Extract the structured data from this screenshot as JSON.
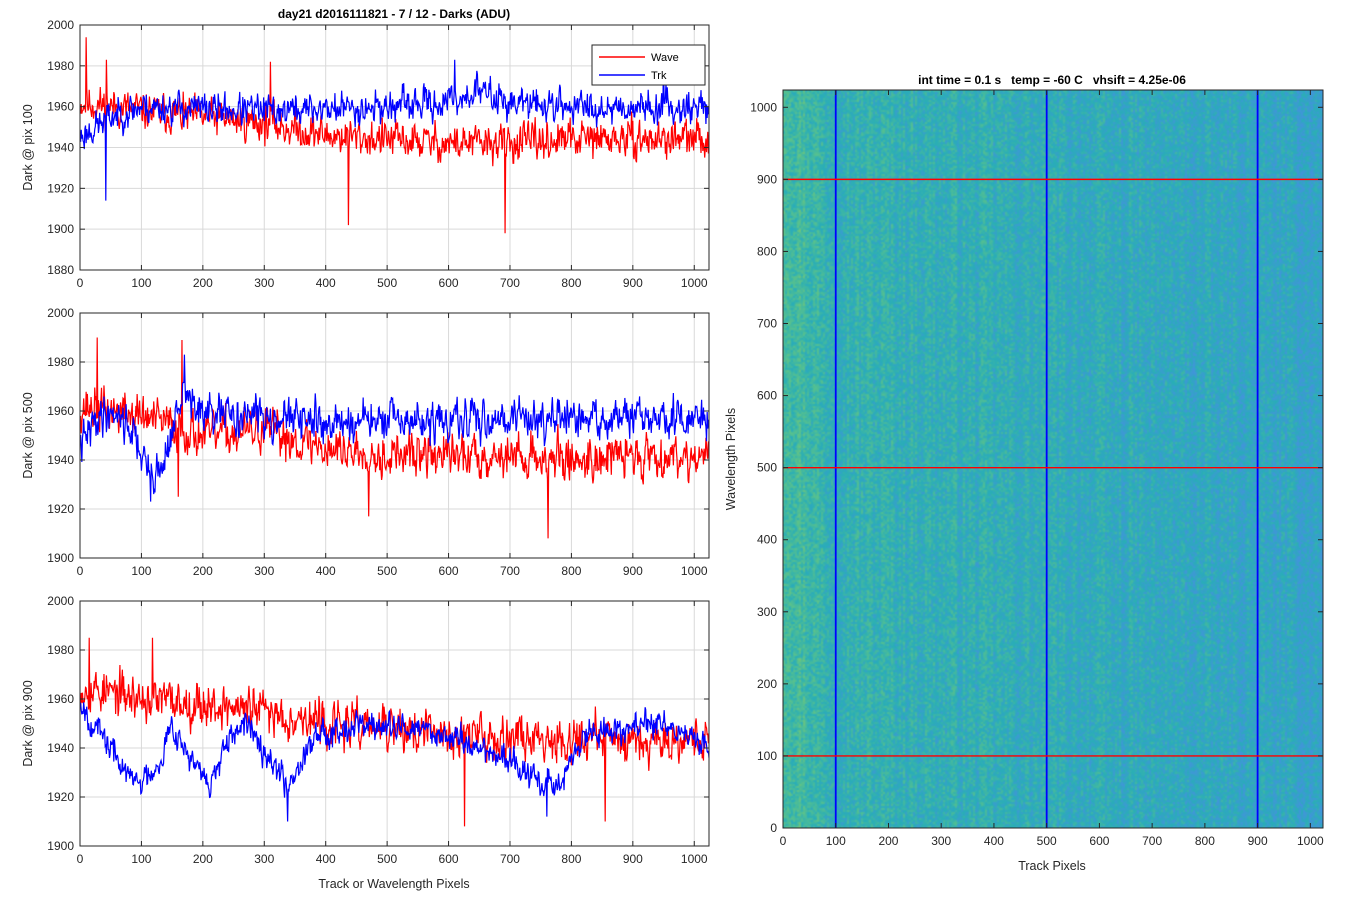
{
  "figure": {
    "title": "day21 d2016111821 - 7 / 12 - Darks (ADU)"
  },
  "colors": {
    "wave": "#ff0000",
    "trk": "#0000ff",
    "grid": "#d9d9d9",
    "axis": "#262626"
  },
  "chart_data": [
    {
      "type": "line",
      "id": "dark-pix-100",
      "title": "day21 d2016111821 - 7 / 12 - Darks (ADU)",
      "xlabel": "",
      "ylabel": "Dark @ pix 100",
      "xlim": [
        0,
        1024
      ],
      "ylim": [
        1880,
        2000
      ],
      "xticks": [
        0,
        100,
        200,
        300,
        400,
        500,
        600,
        700,
        800,
        900,
        1000
      ],
      "yticks": [
        1880,
        1900,
        1920,
        1940,
        1960,
        1980,
        2000
      ],
      "grid": true,
      "legend": {
        "position": "top-right",
        "entries": [
          "Wave",
          "Trk"
        ]
      },
      "series": [
        {
          "name": "Wave",
          "color": "#ff0000",
          "x_range": [
            1,
            1024
          ],
          "trend_x": [
            0,
            100,
            200,
            300,
            400,
            500,
            600,
            700,
            800,
            900,
            1024
          ],
          "trend_y": [
            1962,
            1958,
            1955,
            1952,
            1946,
            1944,
            1942,
            1942,
            1944,
            1944,
            1944
          ],
          "noise": 8,
          "seed": 11,
          "spikes": [
            [
              10,
              1994
            ],
            [
              43,
              1983
            ],
            [
              437,
              1902
            ],
            [
              692,
              1898
            ],
            [
              310,
              1982
            ]
          ]
        },
        {
          "name": "Trk",
          "color": "#0000ff",
          "x_range": [
            1,
            1024
          ],
          "trend_x": [
            0,
            50,
            100,
            200,
            300,
            400,
            500,
            600,
            650,
            700,
            800,
            900,
            1024
          ],
          "trend_y": [
            1945,
            1955,
            1960,
            1959,
            1958,
            1959,
            1960,
            1962,
            1968,
            1962,
            1960,
            1960,
            1960
          ],
          "noise": 7,
          "seed": 23,
          "spikes": [
            [
              42,
              1914
            ],
            [
              610,
              1983
            ],
            [
              950,
              1982
            ]
          ]
        }
      ]
    },
    {
      "type": "line",
      "id": "dark-pix-500",
      "title": "",
      "xlabel": "",
      "ylabel": "Dark @ pix 500",
      "xlim": [
        0,
        1024
      ],
      "ylim": [
        1900,
        2000
      ],
      "xticks": [
        0,
        100,
        200,
        300,
        400,
        500,
        600,
        700,
        800,
        900,
        1000
      ],
      "yticks": [
        1900,
        1920,
        1940,
        1960,
        1980,
        2000
      ],
      "grid": true,
      "series": [
        {
          "name": "Wave",
          "color": "#ff0000",
          "x_range": [
            1,
            1024
          ],
          "trend_x": [
            0,
            100,
            200,
            300,
            400,
            500,
            600,
            700,
            800,
            900,
            1024
          ],
          "trend_y": [
            1962,
            1958,
            1950,
            1952,
            1945,
            1942,
            1942,
            1942,
            1940,
            1942,
            1942
          ],
          "noise": 8,
          "seed": 37,
          "spikes": [
            [
              28,
              1990
            ],
            [
              166,
              1989
            ],
            [
              160,
              1925
            ],
            [
              762,
              1908
            ],
            [
              470,
              1917
            ]
          ]
        },
        {
          "name": "Trk",
          "color": "#0000ff",
          "x_range": [
            1,
            1024
          ],
          "trend_x": [
            0,
            30,
            60,
            90,
            110,
            130,
            170,
            200,
            300,
            400,
            500,
            600,
            700,
            800,
            900,
            1024
          ],
          "trend_y": [
            1945,
            1958,
            1960,
            1950,
            1935,
            1935,
            1968,
            1958,
            1958,
            1955,
            1956,
            1955,
            1958,
            1956,
            1957,
            1956
          ],
          "noise": 7,
          "seed": 41,
          "spikes": [
            [
              170,
              1983
            ],
            [
              115,
              1923
            ]
          ]
        }
      ]
    },
    {
      "type": "line",
      "id": "dark-pix-900",
      "title": "",
      "xlabel": "Track or Wavelength Pixels",
      "ylabel": "Dark @ pix 900",
      "xlim": [
        0,
        1024
      ],
      "ylim": [
        1900,
        2000
      ],
      "xticks": [
        0,
        100,
        200,
        300,
        400,
        500,
        600,
        700,
        800,
        900,
        1000
      ],
      "yticks": [
        1900,
        1920,
        1940,
        1960,
        1980,
        2000
      ],
      "grid": true,
      "series": [
        {
          "name": "Wave",
          "color": "#ff0000",
          "x_range": [
            1,
            1024
          ],
          "trend_x": [
            0,
            100,
            200,
            300,
            400,
            500,
            600,
            700,
            800,
            900,
            1024
          ],
          "trend_y": [
            1965,
            1960,
            1958,
            1955,
            1950,
            1948,
            1945,
            1945,
            1944,
            1944,
            1944
          ],
          "noise": 8,
          "seed": 53,
          "spikes": [
            [
              15,
              1985
            ],
            [
              118,
              1985
            ],
            [
              626,
              1908
            ],
            [
              855,
              1910
            ]
          ]
        },
        {
          "name": "Trk",
          "color": "#0000ff",
          "x_range": [
            1,
            1024
          ],
          "trend_x": [
            0,
            20,
            50,
            80,
            100,
            130,
            150,
            180,
            210,
            250,
            280,
            310,
            340,
            380,
            450,
            500,
            550,
            600,
            650,
            700,
            750,
            780,
            820,
            880,
            950,
            1024
          ],
          "trend_y": [
            1960,
            1950,
            1940,
            1928,
            1926,
            1935,
            1950,
            1935,
            1925,
            1945,
            1950,
            1935,
            1925,
            1945,
            1950,
            1948,
            1948,
            1945,
            1940,
            1935,
            1925,
            1925,
            1945,
            1948,
            1950,
            1940
          ],
          "noise": 5,
          "seed": 67,
          "spikes": [
            [
              338,
              1910
            ],
            [
              760,
              1912
            ]
          ]
        }
      ]
    },
    {
      "type": "heatmap",
      "id": "dark-frame-image",
      "title": "int time = 0.1 s   temp = -60 C   vhsift = 4.25e-06",
      "xlabel": "Track Pixels",
      "ylabel": "Wavelength Pixels",
      "xlim": [
        0,
        1024
      ],
      "ylim": [
        0,
        1024
      ],
      "xticks": [
        0,
        100,
        200,
        300,
        400,
        500,
        600,
        700,
        800,
        900,
        1000
      ],
      "yticks": [
        0,
        100,
        200,
        300,
        400,
        500,
        600,
        700,
        800,
        900,
        1000
      ],
      "grid": false,
      "colormap": "parula",
      "vertical_markers": {
        "x": [
          100,
          500,
          900
        ],
        "color": "#0000ff"
      },
      "horizontal_markers": {
        "y": [
          100,
          500,
          900
        ],
        "color": "#ff0000"
      }
    }
  ]
}
